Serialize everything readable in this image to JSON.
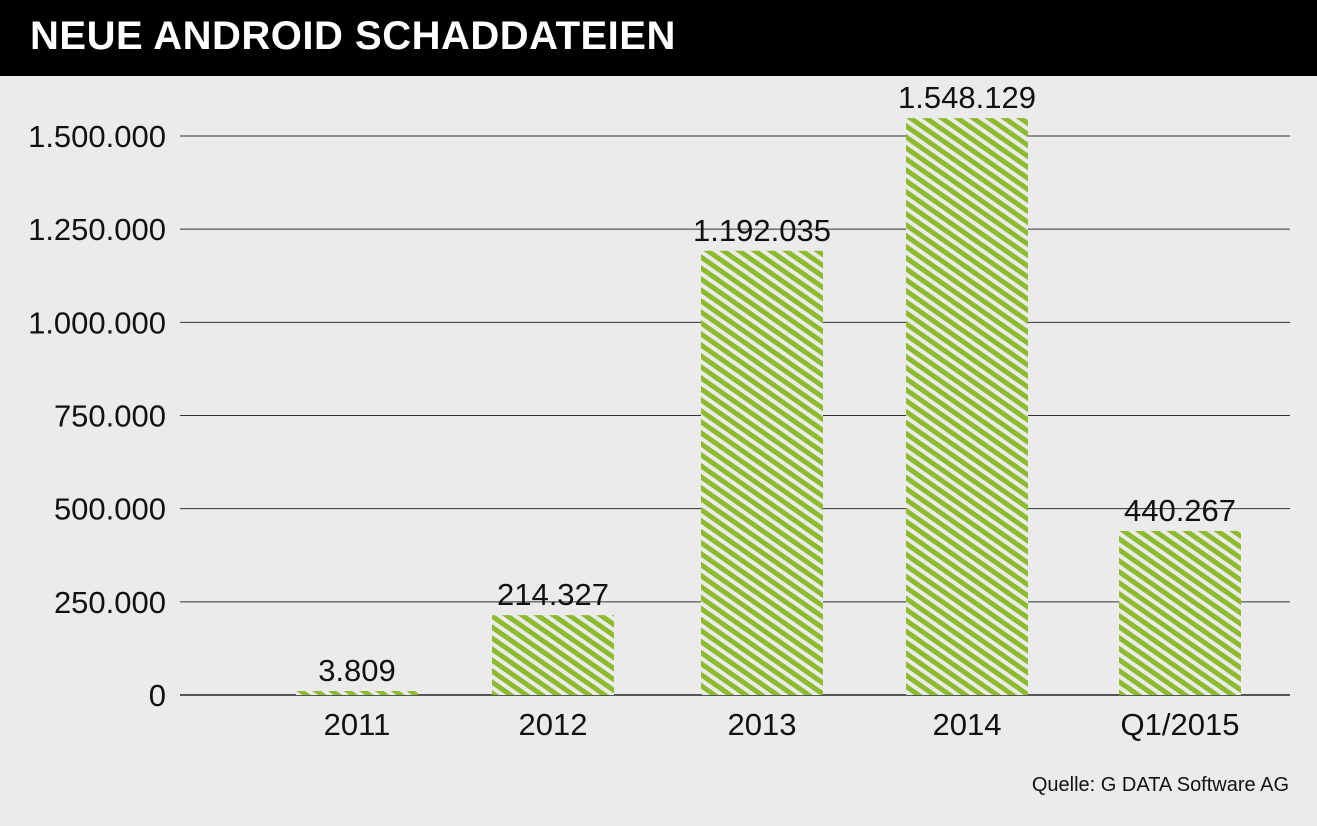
{
  "chart_data": {
    "type": "bar",
    "title": "NEUE ANDROID SCHADDATEIEN",
    "categories": [
      "2011",
      "2012",
      "2013",
      "2014",
      "Q1/2015"
    ],
    "values": [
      3809,
      214327,
      1192035,
      1548129,
      440267
    ],
    "data_labels": [
      "3.809",
      "214.327",
      "1.192.035",
      "1.548.129",
      "440.267"
    ],
    "xlabel": "",
    "ylabel": "",
    "ylim": [
      0,
      1650000
    ],
    "yticks": [
      0,
      250000,
      500000,
      750000,
      1000000,
      1250000,
      1500000
    ],
    "ytick_labels": [
      "0",
      "250.000",
      "500.000",
      "750.000",
      "1.000.000",
      "1.250.000",
      "1.500.000"
    ],
    "grid": true,
    "bar_color": "#8dbb2e",
    "source": "Quelle: G DATA Software AG"
  }
}
